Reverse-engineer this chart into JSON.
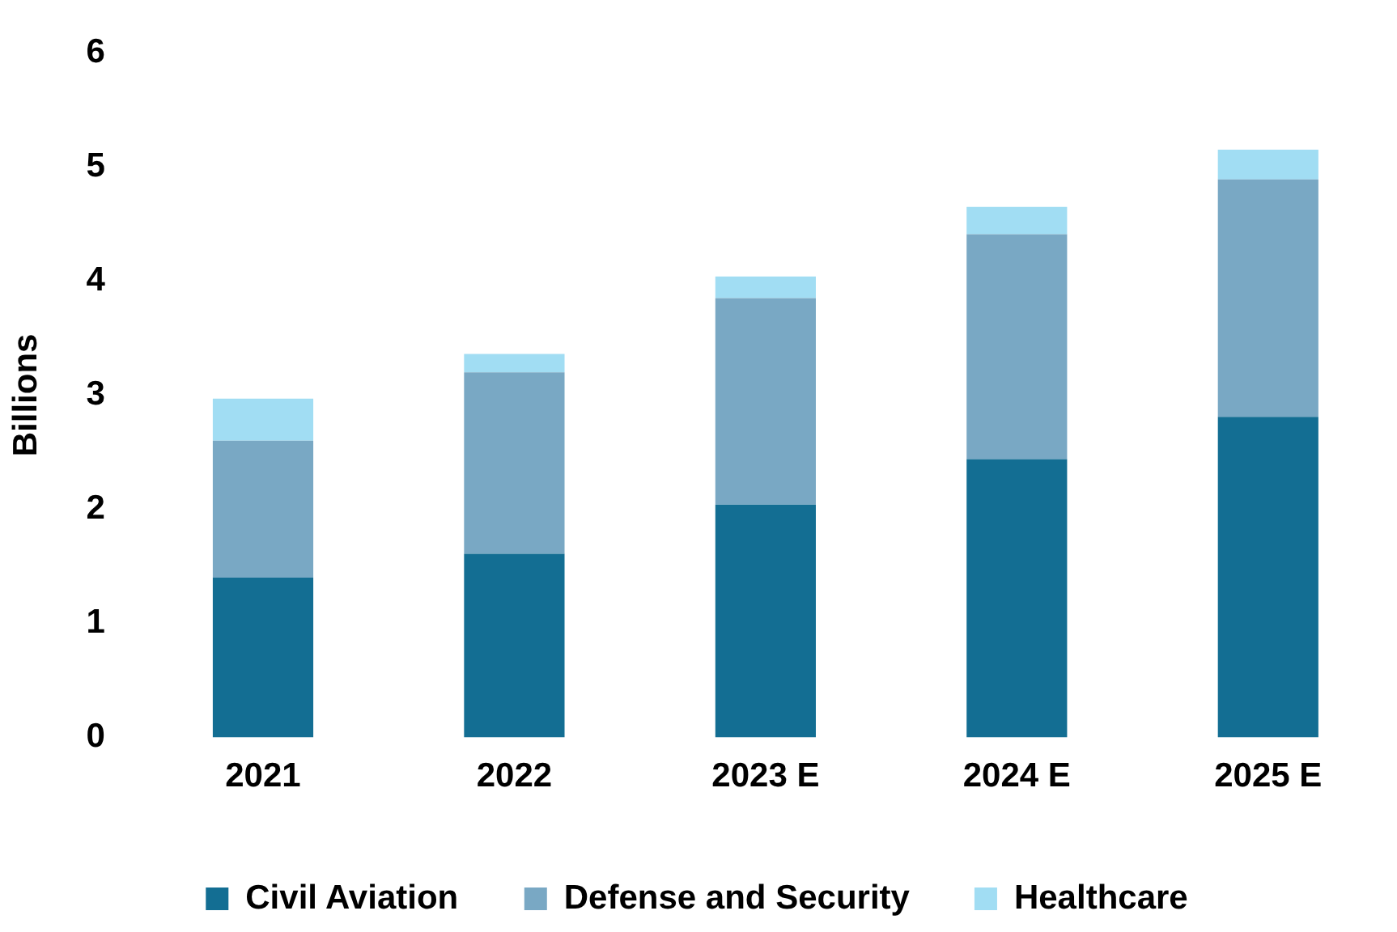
{
  "chart_data": {
    "type": "bar",
    "stacked": true,
    "ylabel": "Billions",
    "categories": [
      "2021",
      "2022",
      "2023 E",
      "2024 E",
      "2025 E"
    ],
    "series": [
      {
        "name": "Civil Aviation",
        "color": "#136e93",
        "values": [
          1.4,
          1.61,
          2.04,
          2.44,
          2.81
        ]
      },
      {
        "name": "Defense and Security",
        "color": "#79a8c4",
        "values": [
          1.2,
          1.59,
          1.81,
          1.97,
          2.08
        ]
      },
      {
        "name": "Healthcare",
        "color": "#a1ddf3",
        "values": [
          0.37,
          0.16,
          0.19,
          0.24,
          0.26
        ]
      }
    ],
    "ylim": [
      0,
      6
    ],
    "yticks": [
      0,
      1,
      2,
      3,
      4,
      5,
      6
    ],
    "grid": false,
    "legend": "bottom"
  }
}
